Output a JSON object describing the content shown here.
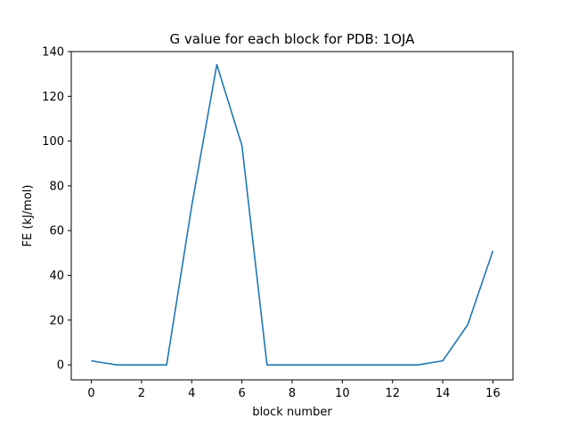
{
  "chart_data": {
    "type": "line",
    "title": "G value for each block for PDB: 1OJA",
    "xlabel": "block number",
    "ylabel": "FE (kJ/mol)",
    "xlim": [
      -0.8,
      16.8
    ],
    "ylim": [
      -6.7,
      140
    ],
    "xticks": [
      0,
      2,
      4,
      6,
      8,
      10,
      12,
      14,
      16
    ],
    "yticks": [
      0,
      20,
      40,
      60,
      80,
      100,
      120,
      140
    ],
    "grid": false,
    "series": [
      {
        "color": "#1f77b4",
        "x": [
          0,
          1,
          2,
          3,
          4,
          5,
          6,
          7,
          8,
          9,
          10,
          11,
          12,
          13,
          14,
          15,
          16
        ],
        "y": [
          1.8,
          0,
          0,
          0,
          71,
          134.2,
          98,
          0,
          0,
          0,
          0,
          0,
          0,
          0,
          1.8,
          18,
          51
        ]
      }
    ]
  }
}
